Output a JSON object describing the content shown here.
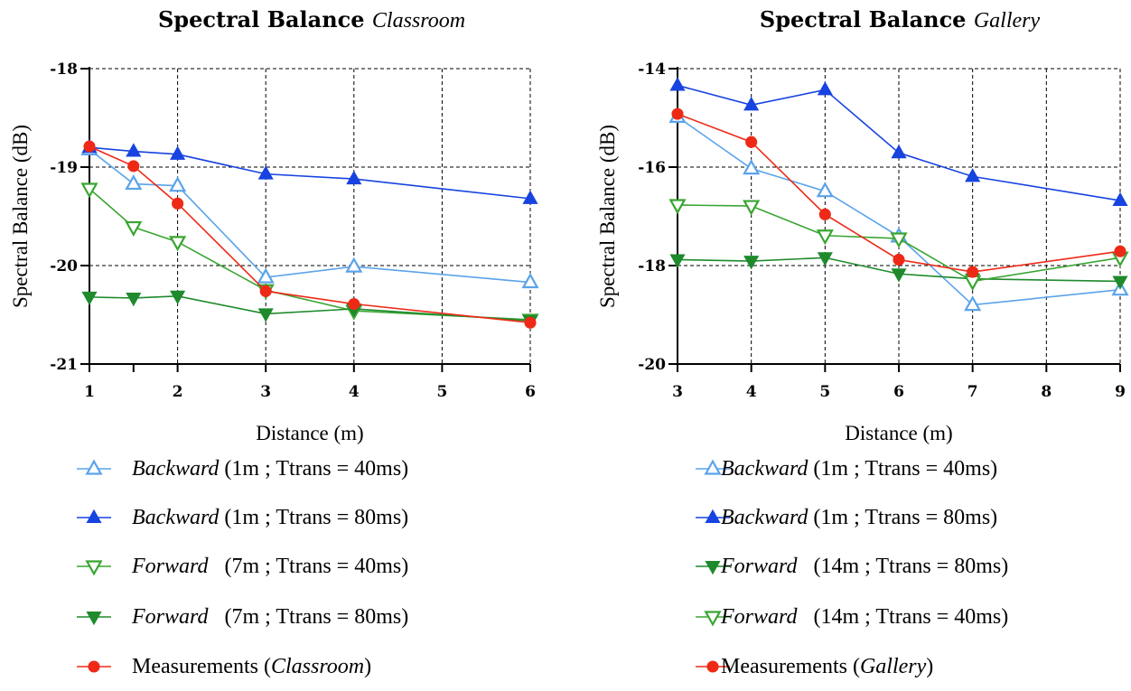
{
  "chart_data": [
    {
      "type": "line",
      "title": "Spectral Balance",
      "subtitle": "Classroom",
      "xlabel": "Distance (m)",
      "ylabel": "Spectral Balance (dB)",
      "xticks": [
        1,
        2,
        3,
        4,
        5,
        6
      ],
      "yticks": [
        -21,
        -20,
        -19,
        -18
      ],
      "xlim": [
        1,
        6
      ],
      "ylim": [
        -21,
        -18
      ],
      "grid": true,
      "legend_position": "below",
      "series": [
        {
          "name": "Backward",
          "legend_suffix": "(1m ; Ttrans = 40ms)",
          "name_italic": true,
          "color": "#5aa3ea",
          "marker": "triangle-up-open",
          "x": [
            1,
            1.5,
            2,
            3,
            4,
            6
          ],
          "y": [
            -18.82,
            -19.17,
            -19.19,
            -20.12,
            -20.01,
            -20.17
          ]
        },
        {
          "name": "Backward",
          "legend_suffix": "(1m ; Ttrans = 80ms)",
          "name_italic": true,
          "color": "#1743e0",
          "marker": "triangle-up-filled",
          "x": [
            1,
            1.5,
            2,
            3,
            4,
            6
          ],
          "y": [
            -18.8,
            -18.84,
            -18.87,
            -19.07,
            -19.12,
            -19.32
          ]
        },
        {
          "name": "Forward",
          "legend_suffix": "(7m ; Ttrans = 40ms)",
          "name_italic": true,
          "color": "#3aa532",
          "marker": "triangle-down-open",
          "x": [
            1,
            1.5,
            2,
            3,
            4,
            6
          ],
          "y": [
            -19.22,
            -19.61,
            -19.76,
            -20.25,
            -20.46,
            -20.55
          ]
        },
        {
          "name": "Forward",
          "legend_suffix": "(7m ; Ttrans = 80ms)",
          "name_italic": true,
          "color": "#1e8a2c",
          "marker": "triangle-down-filled",
          "x": [
            1,
            1.5,
            2,
            3,
            4,
            6
          ],
          "y": [
            -20.32,
            -20.33,
            -20.31,
            -20.49,
            -20.44,
            -20.56
          ]
        },
        {
          "name": "Measurements",
          "legend_suffix": "",
          "legend_paren_italic": "Classroom",
          "name_italic": false,
          "color": "#ee2a17",
          "marker": "circle-filled",
          "x": [
            1,
            1.5,
            2,
            3,
            4,
            6
          ],
          "y": [
            -18.79,
            -18.99,
            -19.37,
            -20.26,
            -20.39,
            -20.58
          ]
        }
      ]
    },
    {
      "type": "line",
      "title": "Spectral Balance",
      "subtitle": "Gallery",
      "xlabel": "Distance (m)",
      "ylabel": "Spectral Balance (dB)",
      "xticks": [
        3,
        4,
        5,
        6,
        7,
        8,
        9
      ],
      "yticks": [
        -20,
        -18,
        -16,
        -14
      ],
      "xlim": [
        3,
        9
      ],
      "ylim": [
        -20,
        -14
      ],
      "grid": true,
      "legend_position": "below",
      "series": [
        {
          "name": "Backward",
          "legend_suffix": "(1m ; Ttrans = 40ms)",
          "name_italic": true,
          "color": "#5aa3ea",
          "marker": "triangle-up-open",
          "x": [
            3,
            4,
            5,
            6,
            7,
            9
          ],
          "y": [
            -14.98,
            -16.03,
            -16.49,
            -17.41,
            -18.8,
            -18.49
          ]
        },
        {
          "name": "Backward",
          "legend_suffix": "(1m ; Ttrans = 80ms)",
          "name_italic": true,
          "color": "#1743e0",
          "marker": "triangle-up-filled",
          "x": [
            3,
            4,
            5,
            6,
            7,
            9
          ],
          "y": [
            -14.34,
            -14.74,
            -14.43,
            -15.71,
            -16.19,
            -16.68
          ]
        },
        {
          "name": "Forward",
          "legend_suffix": "(14m ; Ttrans = 80ms)",
          "name_italic": true,
          "color": "#1e8a2c",
          "marker": "triangle-down-filled",
          "x": [
            3,
            4,
            5,
            6,
            7,
            9
          ],
          "y": [
            -17.88,
            -17.91,
            -17.84,
            -18.17,
            -18.27,
            -18.32
          ]
        },
        {
          "name": "Forward",
          "legend_suffix": "(14m ; Ttrans = 40ms)",
          "name_italic": true,
          "color": "#3aa532",
          "marker": "triangle-down-open",
          "x": [
            3,
            4,
            5,
            6,
            7,
            9
          ],
          "y": [
            -16.77,
            -16.79,
            -17.39,
            -17.45,
            -18.32,
            -17.84
          ]
        },
        {
          "name": "Measurements",
          "legend_suffix": "",
          "legend_paren_italic": "Gallery",
          "name_italic": false,
          "color": "#ee2a17",
          "marker": "circle-filled",
          "x": [
            3,
            4,
            5,
            6,
            7,
            9
          ],
          "y": [
            -14.92,
            -15.49,
            -16.96,
            -17.88,
            -18.13,
            -17.71
          ]
        }
      ]
    }
  ]
}
